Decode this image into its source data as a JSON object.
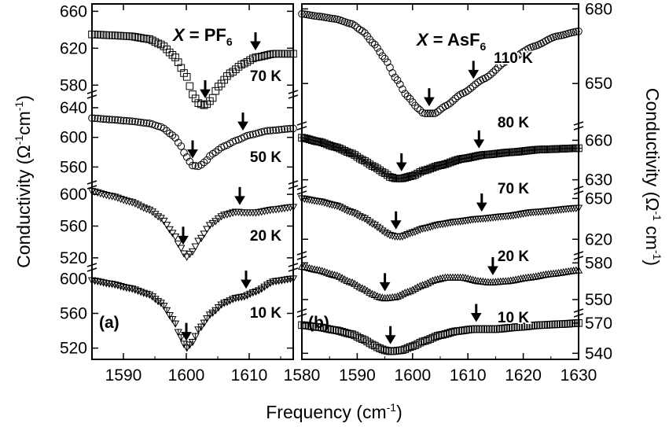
{
  "chart_data": {
    "type": "line",
    "xlabel": "Frequency (cm",
    "xlabel_sup": "-1",
    "xlabel_end": ")",
    "ylabel_left": "Conductivity (Ω",
    "ylabel_left_sup1": "-1",
    "ylabel_left_mid": "cm",
    "ylabel_left_sup2": "-1",
    "ylabel_left_end": ")",
    "ylabel_right": "Conductivity (Ω",
    "ylabel_right_sup1": "-1",
    "ylabel_right_mid": " cm",
    "ylabel_right_sup2": "-1",
    "ylabel_right_end": ")",
    "panels": [
      {
        "letter": "(a)",
        "title_prefix": "X",
        "title_eq": " = PF",
        "title_sub": "6",
        "xlim": [
          1585,
          1617
        ],
        "x_ticks": [
          1590,
          1600,
          1610
        ],
        "x_tick_labels": [
          "1590",
          "1600",
          "1610"
        ],
        "y_axis_side": "left",
        "traces": [
          {
            "label": "70 K",
            "marker": "square",
            "ylim": [
              570,
              668
            ],
            "y_ticks": [
              580,
              620,
              660
            ],
            "y_tick_labels": [
              "580",
              "620",
              "660"
            ],
            "arrows": [
              1603,
              1611
            ],
            "points": [
              [
                1585,
                635
              ],
              [
                1588,
                634
              ],
              [
                1591,
                633
              ],
              [
                1594,
                630
              ],
              [
                1596,
                624
              ],
              [
                1598,
                612
              ],
              [
                1600,
                590
              ],
              [
                1601,
                570
              ],
              [
                1602,
                560
              ],
              [
                1603,
                558
              ],
              [
                1604,
                564
              ],
              [
                1605,
                578
              ],
              [
                1607,
                593
              ],
              [
                1609,
                603
              ],
              [
                1611,
                610
              ],
              [
                1614,
                614
              ],
              [
                1617,
                614
              ]
            ]
          },
          {
            "label": "50 K",
            "marker": "circle",
            "ylim": [
              536,
              658
            ],
            "y_ticks": [
              560,
              600,
              640
            ],
            "y_tick_labels": [
              "560",
              "600",
              "640"
            ],
            "arrows": [
              1601,
              1609
            ],
            "points": [
              [
                1585,
                626
              ],
              [
                1588,
                624
              ],
              [
                1591,
                622
              ],
              [
                1594,
                619
              ],
              [
                1596,
                614
              ],
              [
                1598,
                602
              ],
              [
                1599,
                590
              ],
              [
                1600,
                574
              ],
              [
                1601,
                562
              ],
              [
                1602,
                561
              ],
              [
                1603,
                567
              ],
              [
                1604,
                577
              ],
              [
                1606,
                588
              ],
              [
                1608,
                596
              ],
              [
                1610,
                603
              ],
              [
                1613,
                609
              ],
              [
                1617,
                612
              ]
            ]
          },
          {
            "label": "20 K",
            "marker": "triangle-down",
            "ylim": [
              508,
              612
            ],
            "y_ticks": [
              520,
              560,
              600
            ],
            "y_tick_labels": [
              "520",
              "560",
              "600"
            ],
            "arrows": [
              1599.5,
              1608.5
            ],
            "points": [
              [
                1585,
                604
              ],
              [
                1588,
                598
              ],
              [
                1591,
                591
              ],
              [
                1594,
                581
              ],
              [
                1596,
                570
              ],
              [
                1598,
                550
              ],
              [
                1599,
                534
              ],
              [
                1600,
                521
              ],
              [
                1601,
                528
              ],
              [
                1602,
                542
              ],
              [
                1604,
                563
              ],
              [
                1606,
                574
              ],
              [
                1608,
                578
              ],
              [
                1609,
                577
              ],
              [
                1611,
                577
              ],
              [
                1614,
                581
              ],
              [
                1617,
                584
              ]
            ]
          },
          {
            "label": "10 K",
            "marker": "cross-triangle",
            "ylim": [
              507,
              613
            ],
            "y_ticks": [
              520,
              560,
              600
            ],
            "y_tick_labels": [
              "520",
              "560",
              "600"
            ],
            "arrows": [
              1600,
              1609.5
            ],
            "points": [
              [
                1585,
                598
              ],
              [
                1588,
                594
              ],
              [
                1591,
                589
              ],
              [
                1594,
                582
              ],
              [
                1596,
                572
              ],
              [
                1598,
                552
              ],
              [
                1599,
                534
              ],
              [
                1600,
                520
              ],
              [
                1601,
                527
              ],
              [
                1602,
                542
              ],
              [
                1604,
                560
              ],
              [
                1606,
                572
              ],
              [
                1608,
                578
              ],
              [
                1609,
                579
              ],
              [
                1611,
                585
              ],
              [
                1614,
                597
              ],
              [
                1617,
                600
              ]
            ]
          }
        ]
      },
      {
        "letter": "(b)",
        "title_prefix": "X",
        "title_eq": " = AsF",
        "title_sub": "6",
        "xlim": [
          1580,
          1630
        ],
        "x_ticks": [
          1580,
          1590,
          1600,
          1610,
          1620,
          1630
        ],
        "x_tick_labels": [
          "1580",
          "1590",
          "1600",
          "1610",
          "1620",
          "1630"
        ],
        "y_axis_side": "right",
        "traces": [
          {
            "label": "110 K",
            "marker": "circle",
            "ylim": [
              633,
              682
            ],
            "y_ticks": [
              650,
              680
            ],
            "y_tick_labels": [
              "650",
              "680"
            ],
            "arrows": [
              1603,
              1611
            ],
            "points": [
              [
                1580,
                678
              ],
              [
                1583,
                677
              ],
              [
                1586,
                676
              ],
              [
                1589,
                674
              ],
              [
                1591,
                671
              ],
              [
                1593,
                666
              ],
              [
                1595,
                660
              ],
              [
                1597,
                652
              ],
              [
                1599,
                645
              ],
              [
                1601,
                640
              ],
              [
                1602,
                638
              ],
              [
                1604,
                638
              ],
              [
                1606,
                641
              ],
              [
                1609,
                646
              ],
              [
                1613,
                652
              ],
              [
                1617,
                659
              ],
              [
                1622,
                665
              ],
              [
                1626,
                669
              ],
              [
                1630,
                671
              ]
            ]
          },
          {
            "label": "80 K",
            "marker": "square-plus",
            "ylim": [
              622,
              671
            ],
            "y_ticks": [
              630,
              660
            ],
            "y_tick_labels": [
              "630",
              "660"
            ],
            "arrows": [
              1598,
              1612
            ],
            "points": [
              [
                1580,
                662
              ],
              [
                1583,
                659
              ],
              [
                1586,
                655
              ],
              [
                1589,
                650
              ],
              [
                1591,
                645
              ],
              [
                1593,
                640
              ],
              [
                1595,
                635
              ],
              [
                1596,
                632
              ],
              [
                1597,
                631
              ],
              [
                1598,
                631
              ],
              [
                1600,
                633
              ],
              [
                1602,
                637
              ],
              [
                1605,
                641
              ],
              [
                1609,
                646
              ],
              [
                1613,
                649
              ],
              [
                1618,
                651
              ],
              [
                1623,
                653
              ],
              [
                1630,
                654
              ]
            ]
          },
          {
            "label": "70 K",
            "marker": "triangle-down",
            "ylim": [
              608,
              656
            ],
            "y_ticks": [
              620,
              650
            ],
            "y_tick_labels": [
              "620",
              "650"
            ],
            "arrows": [
              1597,
              1612.5
            ],
            "points": [
              [
                1580,
                650
              ],
              [
                1583,
                648
              ],
              [
                1586,
                645
              ],
              [
                1589,
                640
              ],
              [
                1591,
                636
              ],
              [
                1593,
                631
              ],
              [
                1594,
                628
              ],
              [
                1595,
                625
              ],
              [
                1596,
                623
              ],
              [
                1597,
                622
              ],
              [
                1598,
                622
              ],
              [
                1600,
                625
              ],
              [
                1602,
                628
              ],
              [
                1605,
                631
              ],
              [
                1608,
                633
              ],
              [
                1612,
                635
              ],
              [
                1617,
                637
              ],
              [
                1622,
                640
              ],
              [
                1630,
                643
              ]
            ]
          },
          {
            "label": "20 K",
            "marker": "triangle-up",
            "ylim": [
              539,
              586
            ],
            "y_ticks": [
              550,
              580
            ],
            "y_tick_labels": [
              "550",
              "580"
            ],
            "arrows": [
              1595,
              1614.5
            ],
            "points": [
              [
                1580,
                577
              ],
              [
                1583,
                574
              ],
              [
                1586,
                570
              ],
              [
                1589,
                564
              ],
              [
                1591,
                559
              ],
              [
                1593,
                554
              ],
              [
                1594,
                552
              ],
              [
                1595,
                551
              ],
              [
                1597,
                552
              ],
              [
                1599,
                556
              ],
              [
                1602,
                562
              ],
              [
                1604,
                566
              ],
              [
                1606,
                568
              ],
              [
                1609,
                568
              ],
              [
                1612,
                565
              ],
              [
                1614,
                564
              ],
              [
                1617,
                565
              ],
              [
                1621,
                568
              ],
              [
                1625,
                571
              ],
              [
                1630,
                574
              ]
            ]
          },
          {
            "label": "10 K",
            "marker": "square",
            "ylim": [
              534,
              580
            ],
            "y_ticks": [
              540,
              570
            ],
            "y_tick_labels": [
              "540",
              "570"
            ],
            "arrows": [
              1596,
              1611.5
            ],
            "points": [
              [
                1580,
                568
              ],
              [
                1583,
                566
              ],
              [
                1586,
                563
              ],
              [
                1589,
                559
              ],
              [
                1591,
                554
              ],
              [
                1593,
                548
              ],
              [
                1594,
                545
              ],
              [
                1595,
                543
              ],
              [
                1596,
                542
              ],
              [
                1598,
                543
              ],
              [
                1600,
                547
              ],
              [
                1602,
                552
              ],
              [
                1605,
                558
              ],
              [
                1608,
                562
              ],
              [
                1611,
                564
              ],
              [
                1615,
                564
              ],
              [
                1619,
                566
              ],
              [
                1623,
                568
              ],
              [
                1627,
                569
              ],
              [
                1630,
                570
              ]
            ]
          }
        ]
      }
    ]
  }
}
